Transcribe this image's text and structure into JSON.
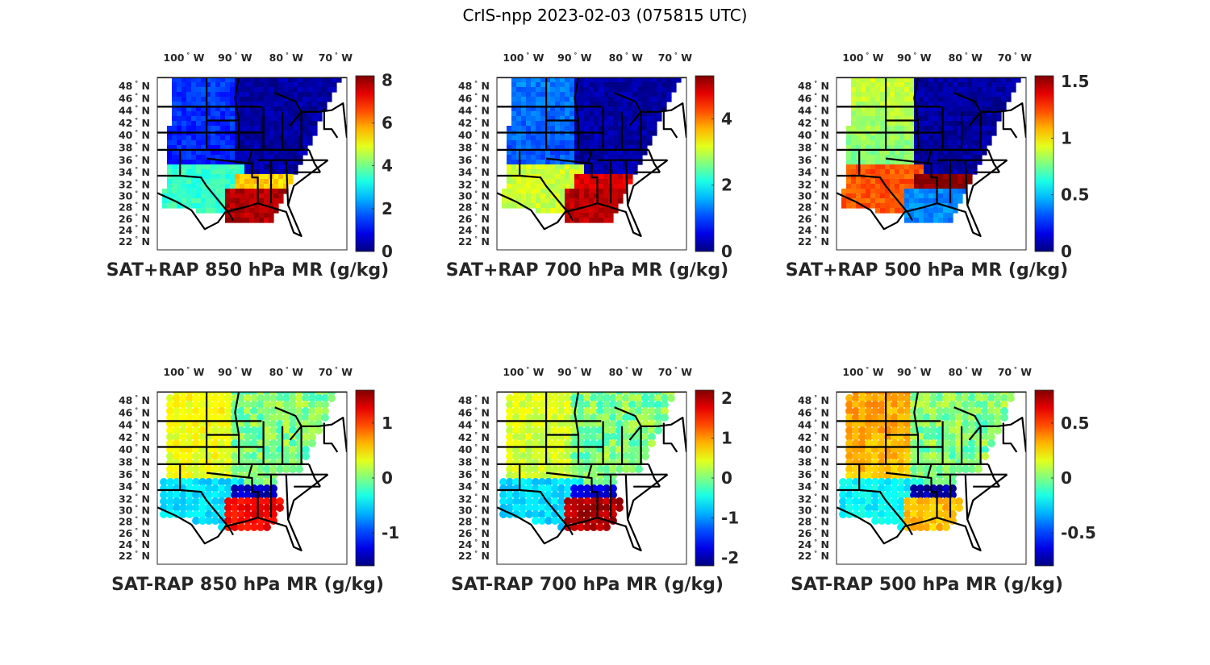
{
  "figure": {
    "title": "CrIS-npp 2023-02-03 (075815 UTC)"
  },
  "chart_data": [
    {
      "type": "heatmap",
      "id": "sat_rap_850",
      "title": "SAT+RAP 850 hPa MR (g/kg)",
      "colormap": "jet",
      "clim": [
        0,
        8.2
      ],
      "colorbar_ticks": [
        0,
        2,
        4,
        6,
        8
      ],
      "colorbar_tick_labels": [
        "0",
        "2",
        "4",
        "6",
        "8"
      ],
      "lon_ticks": [
        "100° W",
        "90° W",
        "80° W",
        "70° W"
      ],
      "lat_ticks": [
        "48° N",
        "46° N",
        "44° N",
        "42° N",
        "40° N",
        "38° N",
        "36° N",
        "34° N",
        "32° N",
        "30° N",
        "28° N",
        "26° N",
        "24° N",
        "22° N"
      ],
      "field": "swath",
      "pattern": {
        "north": 0.3,
        "plains": 1.5,
        "south": 5.5,
        "gulf": 7.8
      }
    },
    {
      "type": "heatmap",
      "id": "sat_rap_700",
      "title": "SAT+RAP 700 hPa MR (g/kg)",
      "colormap": "jet",
      "clim": [
        0,
        5.3
      ],
      "colorbar_ticks": [
        0,
        2,
        4
      ],
      "colorbar_tick_labels": [
        "0",
        "2",
        "4"
      ],
      "lon_ticks": [
        "100° W",
        "90° W",
        "80° W",
        "70° W"
      ],
      "lat_ticks": [
        "48° N",
        "46° N",
        "44° N",
        "42° N",
        "40° N",
        "38° N",
        "36° N",
        "34° N",
        "32° N",
        "30° N",
        "28° N",
        "26° N",
        "24° N",
        "22° N"
      ],
      "field": "swath",
      "pattern": {
        "north": 0.2,
        "plains": 1.3,
        "south": 4.8,
        "gulf": 5.0
      }
    },
    {
      "type": "heatmap",
      "id": "sat_rap_500",
      "title": "SAT+RAP 500 hPa MR (g/kg)",
      "colormap": "jet",
      "clim": [
        0,
        1.55
      ],
      "colorbar_ticks": [
        0,
        0.5,
        1,
        1.5
      ],
      "colorbar_tick_labels": [
        "0",
        "0.5",
        "1",
        "1.5"
      ],
      "lon_ticks": [
        "100° W",
        "90° W",
        "80° W",
        "70° W"
      ],
      "lat_ticks": [
        "48° N",
        "46° N",
        "44° N",
        "42° N",
        "40° N",
        "38° N",
        "36° N",
        "34° N",
        "32° N",
        "30° N",
        "28° N",
        "26° N",
        "24° N",
        "22° N"
      ],
      "field": "swath",
      "pattern": {
        "north": 0.05,
        "plains": 0.9,
        "south": 1.55,
        "gulf": 0.4
      }
    },
    {
      "type": "heatmap",
      "id": "sat_minus_rap_850",
      "title": "SAT-RAP 850 hPa MR (g/kg)",
      "colormap": "jet",
      "clim": [
        -1.6,
        1.6
      ],
      "colorbar_ticks": [
        -1,
        0,
        1
      ],
      "colorbar_tick_labels": [
        "-1",
        "0",
        "1"
      ],
      "lon_ticks": [
        "100° W",
        "90° W",
        "80° W",
        "70° W"
      ],
      "lat_ticks": [
        "48° N",
        "46° N",
        "44° N",
        "42° N",
        "40° N",
        "38° N",
        "36° N",
        "34° N",
        "32° N",
        "30° N",
        "28° N",
        "26° N",
        "24° N",
        "22° N"
      ],
      "field": "points",
      "pattern": {
        "north": 0.0,
        "plains": 0.4,
        "south": -1.4,
        "gulf": 1.2
      }
    },
    {
      "type": "heatmap",
      "id": "sat_minus_rap_700",
      "title": "SAT-RAP 700 hPa MR (g/kg)",
      "colormap": "jet",
      "clim": [
        -2.2,
        2.2
      ],
      "colorbar_ticks": [
        -2,
        -1,
        0,
        1,
        2
      ],
      "colorbar_tick_labels": [
        "-2",
        "-1",
        "0",
        "1",
        "2"
      ],
      "lon_ticks": [
        "100° W",
        "90° W",
        "80° W",
        "70° W"
      ],
      "lat_ticks": [
        "48° N",
        "46° N",
        "44° N",
        "42° N",
        "40° N",
        "38° N",
        "36° N",
        "34° N",
        "32° N",
        "30° N",
        "28° N",
        "26° N",
        "24° N",
        "22° N"
      ],
      "field": "points",
      "pattern": {
        "north": 0.0,
        "plains": 0.4,
        "south": -1.8,
        "gulf": 2.0
      }
    },
    {
      "type": "heatmap",
      "id": "sat_minus_rap_500",
      "title": "SAT-RAP 500 hPa MR (g/kg)",
      "colormap": "jet",
      "clim": [
        -0.8,
        0.8
      ],
      "colorbar_ticks": [
        -0.5,
        0,
        0.5
      ],
      "colorbar_tick_labels": [
        "-0.5",
        "0",
        "0.5"
      ],
      "lon_ticks": [
        "100° W",
        "90° W",
        "80° W",
        "70° W"
      ],
      "lat_ticks": [
        "48° N",
        "46° N",
        "44° N",
        "42° N",
        "40° N",
        "38° N",
        "36° N",
        "34° N",
        "32° N",
        "30° N",
        "28° N",
        "26° N",
        "24° N",
        "22° N"
      ],
      "field": "points",
      "pattern": {
        "north": 0.0,
        "plains": 0.35,
        "south": -0.75,
        "gulf": 0.3
      }
    }
  ]
}
